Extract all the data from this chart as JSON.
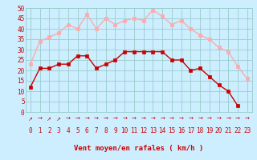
{
  "x": [
    0,
    1,
    2,
    3,
    4,
    5,
    6,
    7,
    8,
    9,
    10,
    11,
    12,
    13,
    14,
    15,
    16,
    17,
    18,
    19,
    20,
    21,
    22,
    23
  ],
  "wind_avg": [
    12,
    21,
    21,
    23,
    23,
    27,
    27,
    21,
    23,
    25,
    29,
    29,
    29,
    29,
    29,
    25,
    25,
    20,
    21,
    17,
    13,
    10,
    3,
    null
  ],
  "wind_gust": [
    23,
    34,
    36,
    38,
    42,
    40,
    47,
    40,
    45,
    42,
    44,
    45,
    44,
    49,
    46,
    42,
    44,
    40,
    37,
    35,
    31,
    29,
    22,
    16
  ],
  "avg_color": "#cc0000",
  "gust_color": "#ffaaaa",
  "bg_color": "#cceeff",
  "grid_color": "#99cccc",
  "ylim": [
    0,
    50
  ],
  "yticks": [
    0,
    5,
    10,
    15,
    20,
    25,
    30,
    35,
    40,
    45,
    50
  ],
  "xlabel": "Vent moyen/en rafales ( km/h )",
  "xlabel_color": "#cc0000",
  "tick_color": "#cc0000",
  "markersize": 2.5,
  "linewidth": 1.0,
  "arrow_symbols": [
    "↗",
    "→",
    "↗",
    "↗",
    "→",
    "→",
    "→",
    "→",
    "→",
    "→",
    "→",
    "→",
    "→",
    "→",
    "→",
    "→",
    "→",
    "→",
    "→",
    "→",
    "→",
    "→",
    "→",
    "→"
  ]
}
